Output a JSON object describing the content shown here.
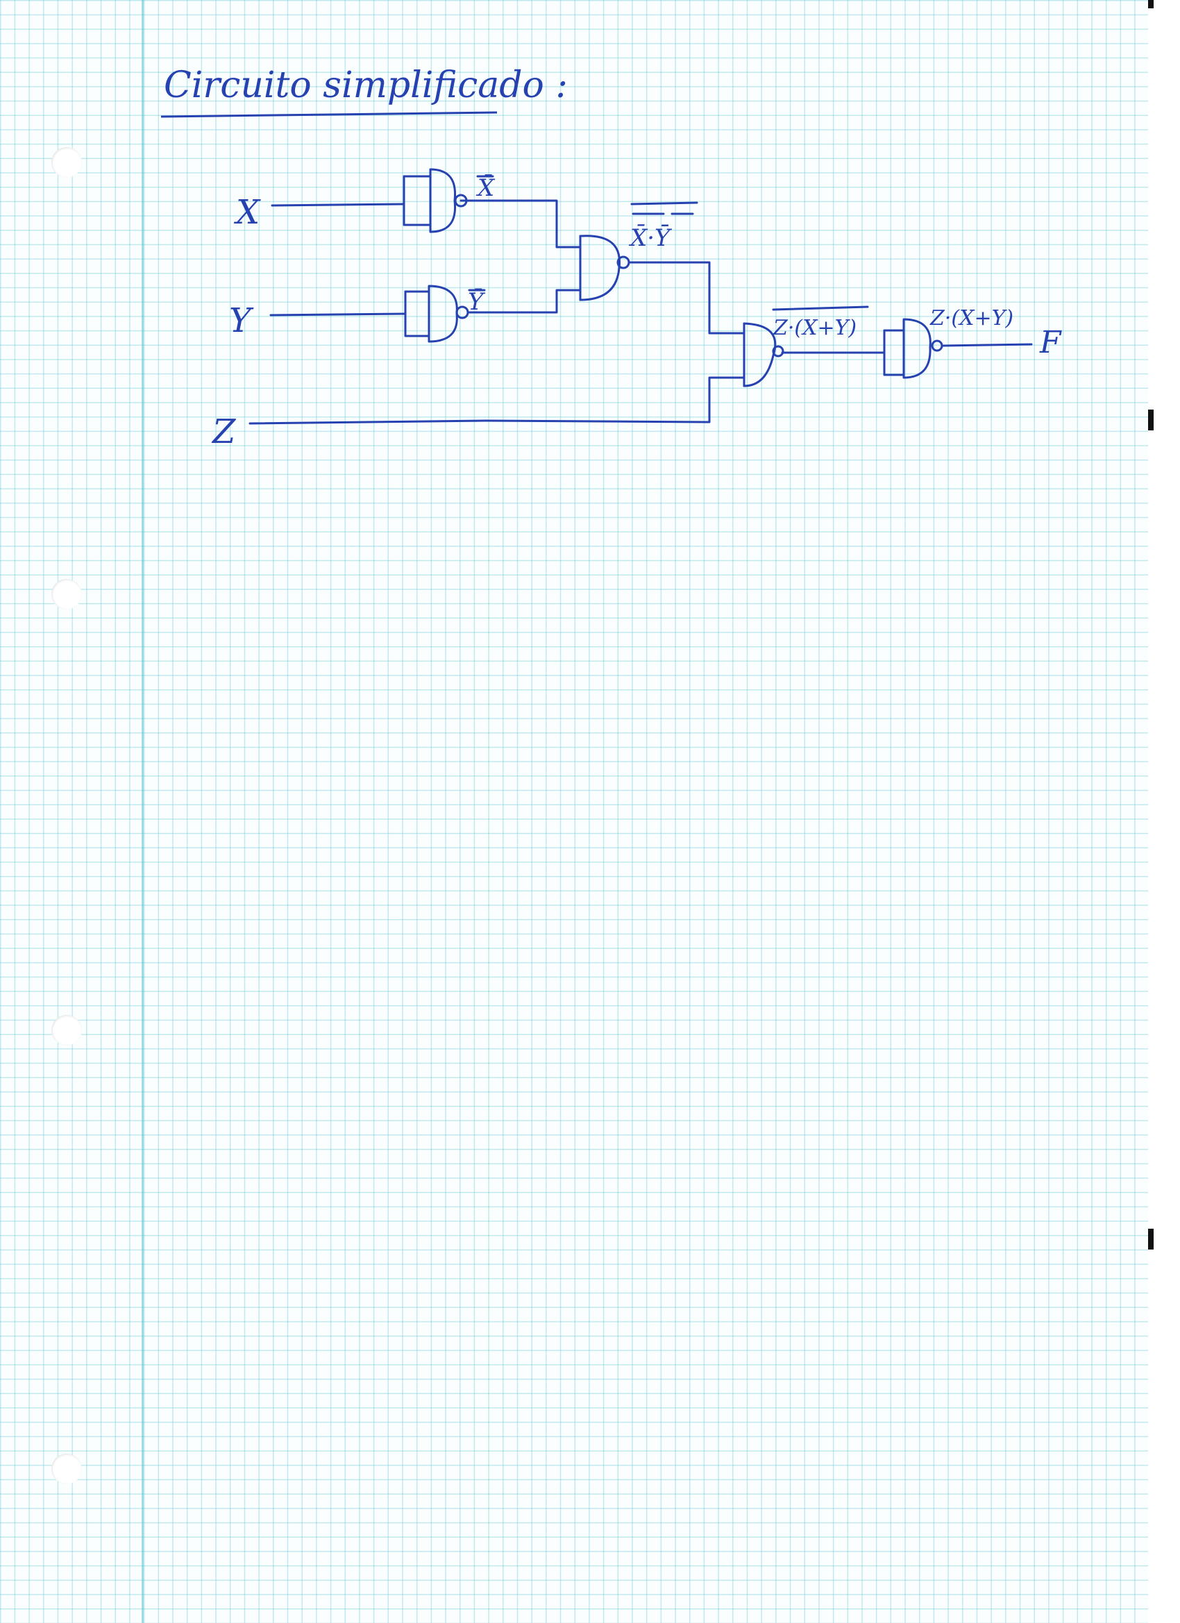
{
  "title": "Circuito simplificado :",
  "inputs": {
    "x": "X",
    "y": "Y",
    "z": "Z"
  },
  "output": "F",
  "gates": [
    {
      "id": "g1",
      "type": "NAND",
      "output_label": "X̄"
    },
    {
      "id": "g2",
      "type": "NAND",
      "output_label": "Ȳ"
    },
    {
      "id": "g3",
      "type": "NAND",
      "output_label": "X̄·Ȳ"
    },
    {
      "id": "g4",
      "type": "NAND",
      "output_label": "Z·(X+Y)"
    },
    {
      "id": "g5",
      "type": "NAND",
      "output_label": "Z·(X+Y)"
    }
  ],
  "colors": {
    "ink": "#2642b0",
    "grid": "#5fc8d4",
    "paper": "#fbfefe"
  }
}
